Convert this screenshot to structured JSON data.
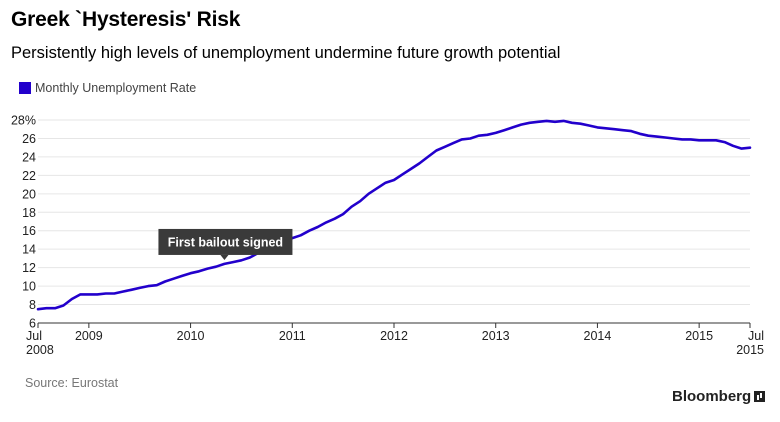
{
  "header": {
    "title": "Greek `Hysteresis' Risk",
    "subtitle": "Persistently high levels of unemployment undermine future growth potential"
  },
  "footer": {
    "source": "Source: Eurostat",
    "brand": "Bloomberg"
  },
  "colors": {
    "series": "#2200cc",
    "annotation_bg": "#3a3a3a",
    "gridline": "#e6e6e6"
  },
  "chart_data": {
    "type": "line",
    "title": "Greek `Hysteresis' Risk",
    "subtitle": "Persistently high levels of unemployment undermine future growth potential",
    "xlabel": "",
    "ylabel": "",
    "ylim": [
      6,
      28
    ],
    "yticks": [
      "28%",
      "26",
      "24",
      "22",
      "20",
      "18",
      "16",
      "14",
      "12",
      "10",
      "8",
      "6"
    ],
    "xticks": [
      {
        "label": "Jul",
        "label2": "2008",
        "x": 2008.5
      },
      {
        "label": "2009",
        "x": 2009.0
      },
      {
        "label": "2010",
        "x": 2010.0
      },
      {
        "label": "2011",
        "x": 2011.0
      },
      {
        "label": "2012",
        "x": 2012.0
      },
      {
        "label": "2013",
        "x": 2013.0
      },
      {
        "label": "2014",
        "x": 2014.0
      },
      {
        "label": "2015",
        "x": 2015.0
      },
      {
        "label": "Jul",
        "label2": "2015",
        "x": 2015.5
      }
    ],
    "grid": true,
    "legend_position": "top-left",
    "series": [
      {
        "name": "Monthly Unemployment Rate",
        "x": [
          2008.5,
          2008.583,
          2008.667,
          2008.75,
          2008.833,
          2008.917,
          2009.0,
          2009.083,
          2009.167,
          2009.25,
          2009.333,
          2009.417,
          2009.5,
          2009.583,
          2009.667,
          2009.75,
          2009.833,
          2009.917,
          2010.0,
          2010.083,
          2010.167,
          2010.25,
          2010.333,
          2010.417,
          2010.5,
          2010.583,
          2010.667,
          2010.75,
          2010.833,
          2010.917,
          2011.0,
          2011.083,
          2011.167,
          2011.25,
          2011.333,
          2011.417,
          2011.5,
          2011.583,
          2011.667,
          2011.75,
          2011.833,
          2011.917,
          2012.0,
          2012.083,
          2012.167,
          2012.25,
          2012.333,
          2012.417,
          2012.5,
          2012.583,
          2012.667,
          2012.75,
          2012.833,
          2012.917,
          2013.0,
          2013.083,
          2013.167,
          2013.25,
          2013.333,
          2013.417,
          2013.5,
          2013.583,
          2013.667,
          2013.75,
          2013.833,
          2013.917,
          2014.0,
          2014.083,
          2014.167,
          2014.25,
          2014.333,
          2014.417,
          2014.5,
          2014.583,
          2014.667,
          2014.75,
          2014.833,
          2014.917,
          2015.0,
          2015.083,
          2015.167,
          2015.25,
          2015.333,
          2015.417,
          2015.5
        ],
        "values": [
          7.5,
          7.6,
          7.6,
          7.9,
          8.6,
          9.1,
          9.1,
          9.1,
          9.2,
          9.2,
          9.4,
          9.6,
          9.8,
          10.0,
          10.1,
          10.5,
          10.8,
          11.1,
          11.4,
          11.6,
          11.9,
          12.1,
          12.4,
          12.6,
          12.8,
          13.1,
          13.6,
          14.1,
          14.6,
          15.0,
          15.2,
          15.5,
          16.0,
          16.4,
          16.9,
          17.3,
          17.8,
          18.6,
          19.2,
          20.0,
          20.6,
          21.2,
          21.5,
          22.1,
          22.7,
          23.3,
          24.0,
          24.7,
          25.1,
          25.5,
          25.9,
          26.0,
          26.3,
          26.4,
          26.6,
          26.9,
          27.2,
          27.5,
          27.7,
          27.8,
          27.9,
          27.8,
          27.9,
          27.7,
          27.6,
          27.4,
          27.2,
          27.1,
          27.0,
          26.9,
          26.8,
          26.5,
          26.3,
          26.2,
          26.1,
          26.0,
          25.9,
          25.9,
          25.8,
          25.8,
          25.8,
          25.6,
          25.2,
          24.9,
          25.0
        ]
      }
    ],
    "annotations": [
      {
        "text": "First bailout signed",
        "x": 2010.333,
        "y": 12.4
      }
    ]
  }
}
